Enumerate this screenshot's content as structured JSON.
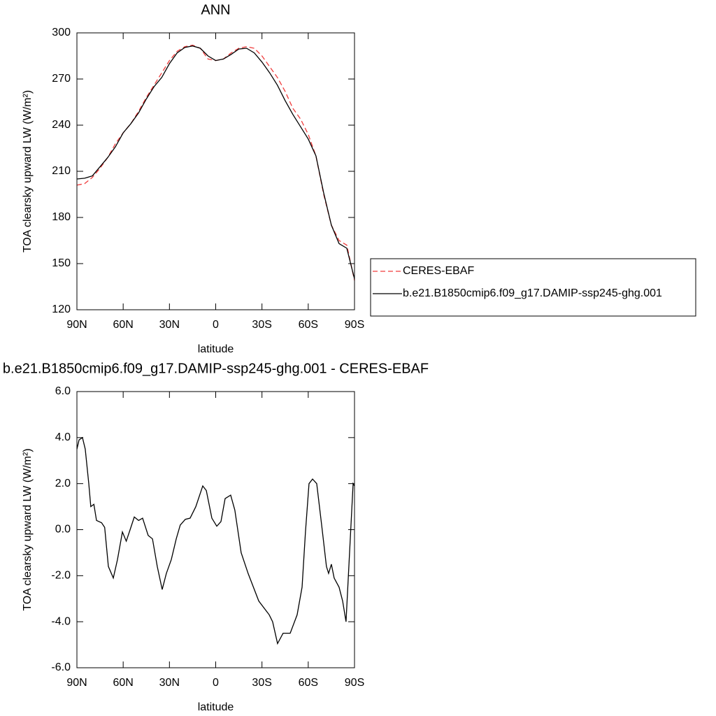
{
  "chart_data": [
    {
      "type": "line",
      "title": "ANN",
      "xlabel": "latitude",
      "ylabel": "TOA clearsky upward LW (W/m²)",
      "x": [
        90,
        85,
        80,
        75,
        70,
        65,
        60,
        55,
        50,
        45,
        40,
        35,
        30,
        25,
        20,
        15,
        10,
        5,
        0,
        -5,
        -10,
        -15,
        -20,
        -25,
        -30,
        -35,
        -40,
        -45,
        -50,
        -55,
        -60,
        -65,
        -70,
        -75,
        -80,
        -85,
        -90
      ],
      "series": [
        {
          "name": "CERES-EBAF",
          "color": "#f03c3c",
          "linestyle": "dashed",
          "values": [
            201,
            202,
            206,
            212,
            219,
            228,
            235,
            241,
            249,
            258,
            266,
            274,
            282,
            288,
            291,
            292,
            290,
            283,
            282,
            283,
            287,
            290,
            291,
            290,
            285,
            278,
            271,
            262,
            251,
            244,
            234,
            220,
            195,
            175,
            165,
            162,
            139
          ]
        },
        {
          "name": "b.e21.B1850cmip6.f09_g17.DAMIP-ssp245-ghg.001",
          "color": "#000000",
          "linestyle": "solid",
          "values": [
            205,
            205.5,
            207,
            213,
            219,
            226,
            235,
            241,
            248,
            257,
            265,
            271,
            280,
            287,
            290.5,
            291.5,
            290,
            285,
            282,
            283,
            286,
            289.5,
            290,
            287,
            281,
            274,
            266,
            256,
            247,
            239,
            231,
            220,
            196,
            175,
            163,
            160,
            140
          ]
        }
      ],
      "xlim": [
        90,
        -90
      ],
      "xticks": [
        {
          "value": 90,
          "label": "90N"
        },
        {
          "value": 60,
          "label": "60N"
        },
        {
          "value": 30,
          "label": "30N"
        },
        0,
        {
          "value": -30,
          "label": "30S"
        },
        {
          "value": -60,
          "label": "60S"
        },
        {
          "value": -90,
          "label": "90S"
        }
      ],
      "ylim": [
        120,
        300
      ],
      "yticks": [
        120,
        150,
        180,
        210,
        240,
        270,
        300
      ],
      "legend": "right"
    },
    {
      "type": "line",
      "title": "b.e21.B1850cmip6.f09_g17.DAMIP-ssp245-ghg.001 - CERES-EBAF",
      "xlabel": "latitude",
      "ylabel": "TOA clearsky upward LW (W/m²)",
      "x": [
        90,
        88.6,
        86.4,
        84.6,
        82.3,
        81,
        79,
        77.3,
        74,
        72,
        69.6,
        66.4,
        63.7,
        60.5,
        58,
        55.5,
        52.8,
        50,
        47.4,
        43.8,
        41,
        37.9,
        34.7,
        32,
        28.8,
        25.6,
        23,
        19.7,
        16.6,
        12.9,
        8.4,
        6.1,
        2.5,
        -0.7,
        -3.4,
        -6.1,
        -9.7,
        -12.4,
        -16.5,
        -21,
        -27.9,
        -34.7,
        -36.9,
        -40.1,
        -43.7,
        -48.3,
        -52.8,
        -56,
        -58.2,
        -60.5,
        -62.8,
        -65.5,
        -68.7,
        -71.8,
        -73.2,
        -75,
        -76.8,
        -80,
        -82.3,
        -84.5,
        -86.8,
        -89.1,
        -90
      ],
      "series": [
        {
          "color": "#000000",
          "linestyle": "solid",
          "values": [
            3.5,
            3.9,
            4.0,
            3.5,
            2.0,
            1.0,
            1.1,
            0.4,
            0.3,
            0.1,
            -1.6,
            -2.1,
            -1.3,
            -0.1,
            -0.5,
            0,
            0.55,
            0.4,
            0.5,
            -0.25,
            -0.4,
            -1.6,
            -2.6,
            -1.9,
            -1.3,
            -0.4,
            0.2,
            0.45,
            0.5,
            1.0,
            1.9,
            1.7,
            0.5,
            0.15,
            0.35,
            1.35,
            1.5,
            0.85,
            -1.0,
            -1.9,
            -3.1,
            -3.7,
            -4.0,
            -4.95,
            -4.5,
            -4.5,
            -3.7,
            -2.5,
            -0.1,
            2.0,
            2.2,
            2.0,
            0.2,
            -1.6,
            -1.9,
            -1.5,
            -2.1,
            -2.5,
            -3.1,
            -4.0,
            -1.0,
            2.0,
            1.9
          ]
        }
      ],
      "xlim": [
        90,
        -90
      ],
      "xticks": [
        {
          "value": 90,
          "label": "90N"
        },
        {
          "value": 60,
          "label": "60N"
        },
        {
          "value": 30,
          "label": "30N"
        },
        0,
        {
          "value": -30,
          "label": "30S"
        },
        {
          "value": -60,
          "label": "60S"
        },
        {
          "value": -90,
          "label": "90S"
        }
      ],
      "ylim": [
        -6,
        6
      ],
      "yticks": [
        {
          "value": -6,
          "label": "-6.0"
        },
        {
          "value": -4,
          "label": "-4.0"
        },
        {
          "value": -2,
          "label": "-2.0"
        },
        {
          "value": 0,
          "label": "0.0"
        },
        {
          "value": 2,
          "label": "2.0"
        },
        {
          "value": 4,
          "label": "4.0"
        },
        {
          "value": 6,
          "label": "6.0"
        }
      ]
    }
  ]
}
